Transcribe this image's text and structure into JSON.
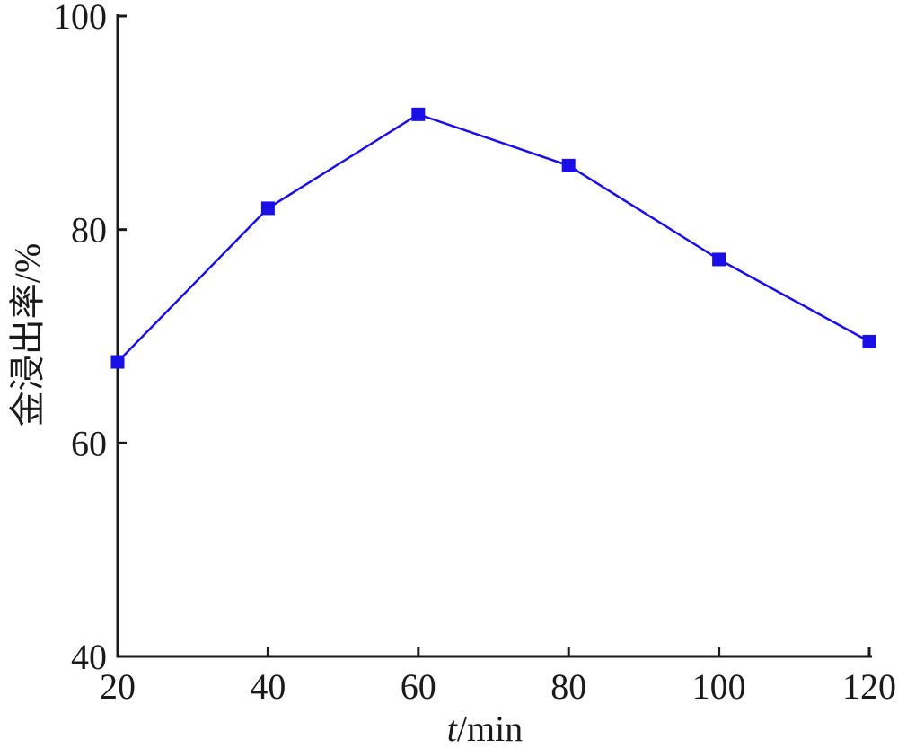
{
  "chart_data": {
    "type": "line",
    "xlabel_italic": "t",
    "xlabel_rest": "/min",
    "ylabel": "金浸出率/%",
    "xlim": [
      20,
      120
    ],
    "ylim": [
      40,
      100
    ],
    "xticks": [
      20,
      40,
      60,
      80,
      100,
      120
    ],
    "yticks": [
      40,
      60,
      80,
      100
    ],
    "grid": false,
    "series": [
      {
        "color": "#1a0fe6",
        "marker": "square",
        "x": [
          20,
          40,
          60,
          80,
          100,
          120
        ],
        "y": [
          67.6,
          82.0,
          90.8,
          86.0,
          77.2,
          69.5
        ]
      }
    ]
  }
}
